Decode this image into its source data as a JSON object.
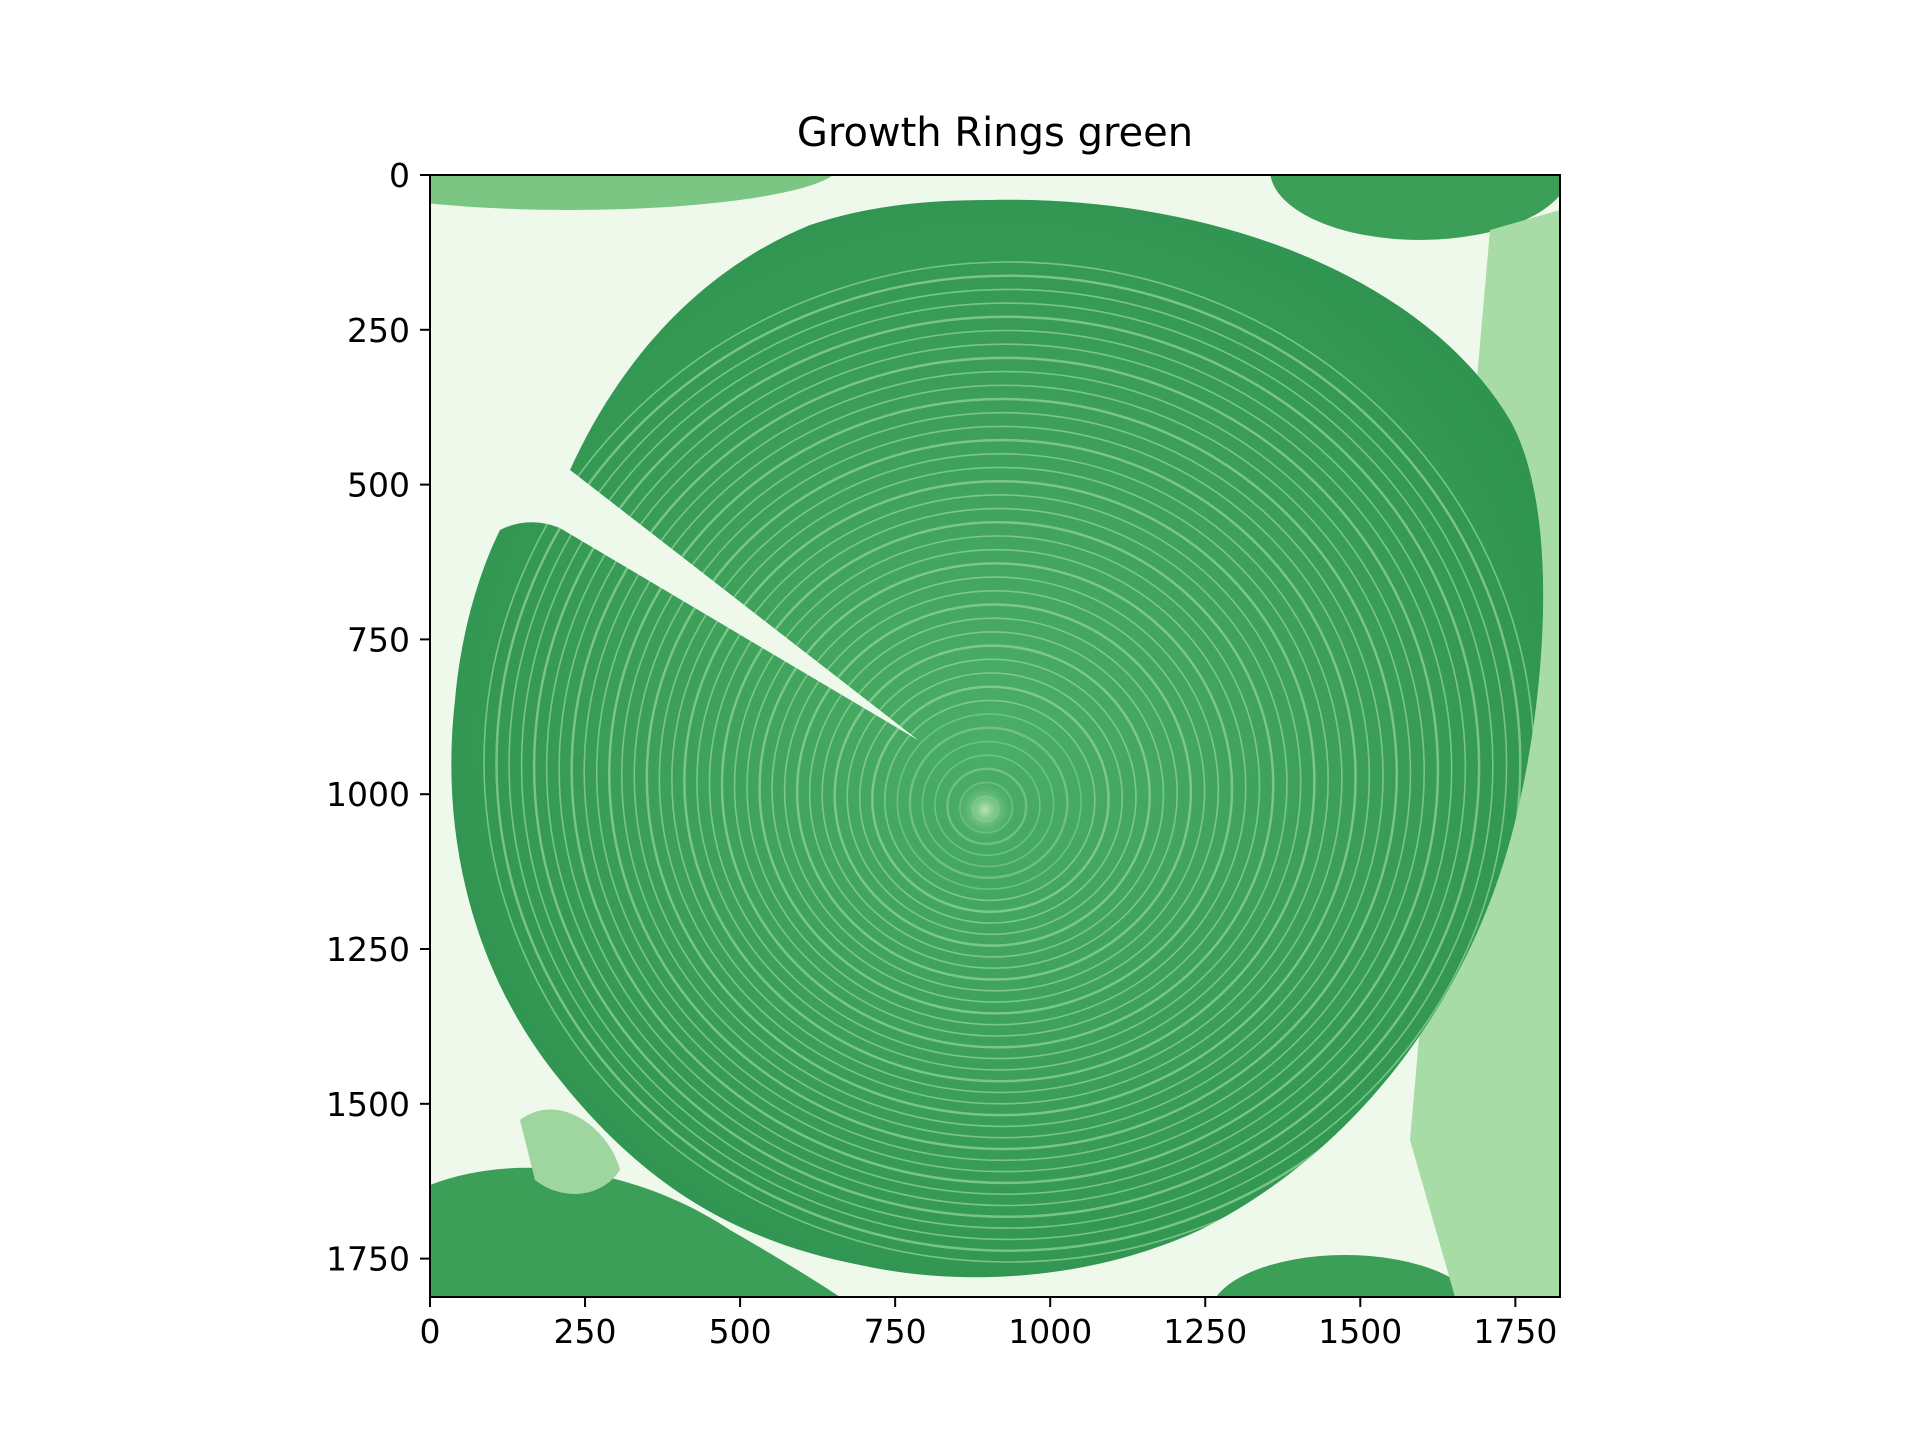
{
  "figure": {
    "title": "Growth Rings green",
    "colormap": "Greens",
    "colors": {
      "background_light": "#eef9eb",
      "wood_mid": "#3fa55c",
      "wood_dark": "#2a8c47",
      "ring_light": "#8fd39a",
      "pith_light": "#b8e5b5"
    }
  },
  "axes": {
    "x_ticks": [
      "0",
      "250",
      "500",
      "750",
      "1000",
      "1250",
      "1500",
      "1750"
    ],
    "y_ticks": [
      "0",
      "250",
      "500",
      "750",
      "1000",
      "1250",
      "1500",
      "1750"
    ],
    "x_range": [
      0,
      1822
    ],
    "y_range": [
      0,
      1812
    ],
    "y_inverted": true
  },
  "image": {
    "subject": "tree trunk cross-section with growth rings",
    "ring_count_approx": 40
  }
}
